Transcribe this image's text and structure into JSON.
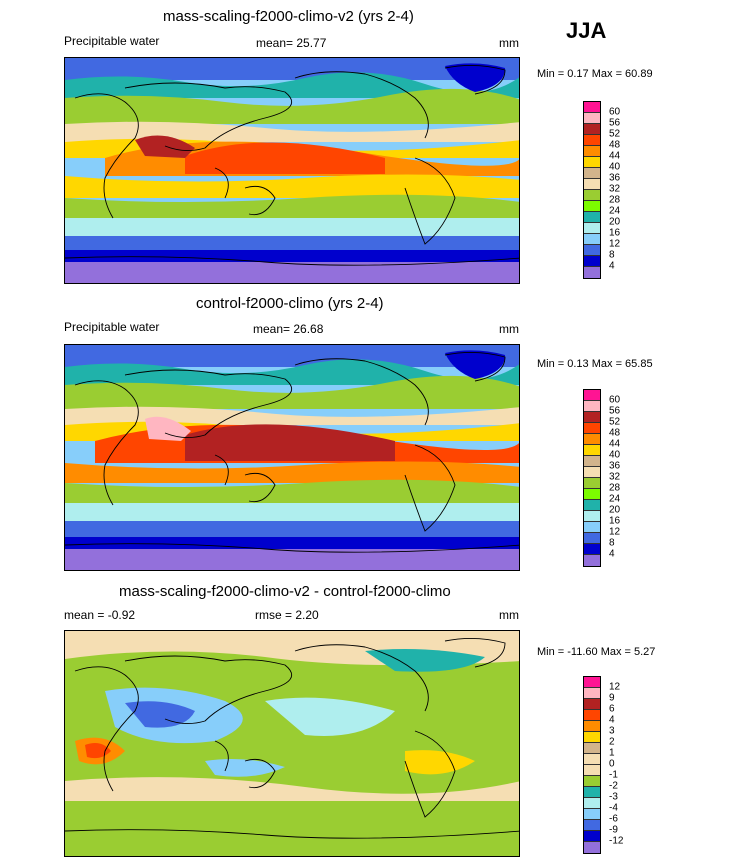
{
  "season": "JJA",
  "panels": [
    {
      "title": "mass-scaling-f2000-climo-v2 (yrs 2-4)",
      "left_label": "Precipitable water",
      "mid_label": "mean=  25.77",
      "units": "mm",
      "minmax": "Min =  0.17 Max =  60.89",
      "colorbar": {
        "labels": [
          "60",
          "56",
          "52",
          "48",
          "44",
          "40",
          "36",
          "32",
          "28",
          "24",
          "20",
          "16",
          "12",
          "8",
          "4"
        ],
        "colors": [
          "#ff1493",
          "#ffb6c1",
          "#b22222",
          "#ff4500",
          "#ff8c00",
          "#ffd700",
          "#d2b48c",
          "#f5deb3",
          "#9acd32",
          "#7cfc00",
          "#20b2aa",
          "#afeeee",
          "#87cefa",
          "#4169e1",
          "#0000cd",
          "#9370db"
        ]
      }
    },
    {
      "title": "control-f2000-climo (yrs 2-4)",
      "left_label": "Precipitable water",
      "mid_label": "mean=  26.68",
      "units": "mm",
      "minmax": "Min =  0.13 Max =  65.85",
      "colorbar": {
        "labels": [
          "60",
          "56",
          "52",
          "48",
          "44",
          "40",
          "36",
          "32",
          "28",
          "24",
          "20",
          "16",
          "12",
          "8",
          "4"
        ],
        "colors": [
          "#ff1493",
          "#ffb6c1",
          "#b22222",
          "#ff4500",
          "#ff8c00",
          "#ffd700",
          "#d2b48c",
          "#f5deb3",
          "#9acd32",
          "#7cfc00",
          "#20b2aa",
          "#afeeee",
          "#87cefa",
          "#4169e1",
          "#0000cd",
          "#9370db"
        ]
      }
    },
    {
      "title": "mass-scaling-f2000-climo-v2 - control-f2000-climo",
      "left_label": "mean =  -0.92",
      "mid_label": "rmse =   2.20",
      "units": "mm",
      "minmax": "Min = -11.60 Max =   5.27",
      "colorbar": {
        "labels": [
          "12",
          "9",
          "6",
          "4",
          "3",
          "2",
          "1",
          "0",
          "-1",
          "-2",
          "-3",
          "-4",
          "-6",
          "-9",
          "-12"
        ],
        "colors": [
          "#ff1493",
          "#ffb6c1",
          "#b22222",
          "#ff4500",
          "#ff8c00",
          "#ffd700",
          "#d2b48c",
          "#f5deb3",
          "#f5deb3",
          "#9acd32",
          "#20b2aa",
          "#afeeee",
          "#87cefa",
          "#4169e1",
          "#0000cd",
          "#9370db"
        ]
      }
    }
  ]
}
